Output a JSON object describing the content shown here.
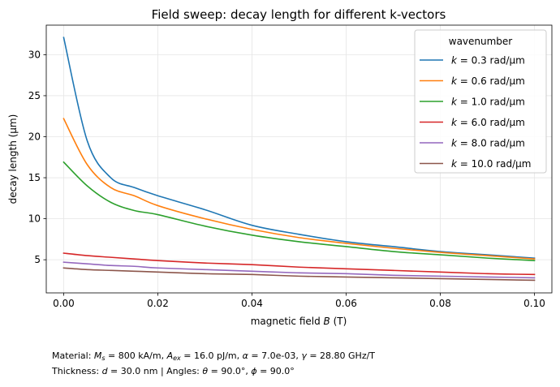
{
  "chart_data": {
    "type": "line",
    "title": "Field sweep: decay length for different k-vectors",
    "xlabel_prefix": "magnetic field ",
    "xlabel_symbol": "B",
    "xlabel_suffix": " (T)",
    "ylabel": "decay length (µm)",
    "xlim": [
      -0.0037,
      0.1037
    ],
    "ylim": [
      0.96,
      33.6
    ],
    "xticks": [
      0.0,
      0.02,
      0.04,
      0.06,
      0.08,
      0.1
    ],
    "xtick_labels": [
      "0.00",
      "0.02",
      "0.04",
      "0.06",
      "0.08",
      "0.10"
    ],
    "yticks": [
      5,
      10,
      15,
      20,
      25,
      30
    ],
    "ytick_labels": [
      "5",
      "10",
      "15",
      "20",
      "25",
      "30"
    ],
    "grid": true,
    "legend": {
      "title": "wavenumber",
      "placement": "top-right"
    },
    "x": [
      0.0,
      0.005,
      0.01,
      0.015,
      0.02,
      0.03,
      0.04,
      0.05,
      0.06,
      0.07,
      0.08,
      0.09,
      0.1
    ],
    "series": [
      {
        "name": "k = 0.3 rad/µm",
        "k_text": "0.3",
        "color": "#1f77b4",
        "values": [
          32.1,
          19.5,
          15.0,
          13.8,
          12.8,
          11.1,
          9.2,
          8.1,
          7.2,
          6.6,
          6.0,
          5.6,
          5.2
        ]
      },
      {
        "name": "k = 0.6 rad/µm",
        "k_text": "0.6",
        "color": "#ff7f0e",
        "values": [
          22.2,
          16.6,
          13.8,
          12.8,
          11.6,
          10.0,
          8.7,
          7.7,
          7.0,
          6.4,
          5.9,
          5.5,
          5.1
        ]
      },
      {
        "name": "k = 1.0 rad/µm",
        "k_text": "1.0",
        "color": "#2ca02c",
        "values": [
          16.9,
          14.0,
          12.0,
          11.0,
          10.5,
          9.1,
          8.0,
          7.2,
          6.6,
          6.0,
          5.6,
          5.2,
          4.9
        ]
      },
      {
        "name": "k = 6.0 rad/µm",
        "k_text": "6.0",
        "color": "#d62728",
        "values": [
          5.8,
          5.5,
          5.3,
          5.1,
          4.9,
          4.6,
          4.4,
          4.1,
          3.9,
          3.7,
          3.5,
          3.3,
          3.2
        ]
      },
      {
        "name": "k = 8.0 rad/µm",
        "k_text": "8.0",
        "color": "#9467bd",
        "values": [
          4.7,
          4.5,
          4.3,
          4.2,
          4.0,
          3.8,
          3.6,
          3.4,
          3.3,
          3.1,
          3.0,
          2.9,
          2.8
        ]
      },
      {
        "name": "k = 10.0 rad/µm",
        "k_text": "10.0",
        "color": "#8c564b",
        "values": [
          4.0,
          3.8,
          3.7,
          3.6,
          3.5,
          3.3,
          3.2,
          3.0,
          2.9,
          2.8,
          2.7,
          2.6,
          2.5
        ]
      }
    ],
    "unit": "rad/µm"
  },
  "caption": {
    "line1": {
      "prefix": "Material: ",
      "ms_value": " = 800 kA/m, ",
      "aex_value": " = 16.0 pJ/m, ",
      "alpha_value": " = 7.0e-03, ",
      "gamma_value": " = 28.80 GHz/T"
    },
    "line2": {
      "prefix": "Thickness: ",
      "d_value": " = 30.0 nm | Angles: ",
      "theta_value": " = 90.0°, ",
      "phi_value": " = 90.0°"
    }
  }
}
